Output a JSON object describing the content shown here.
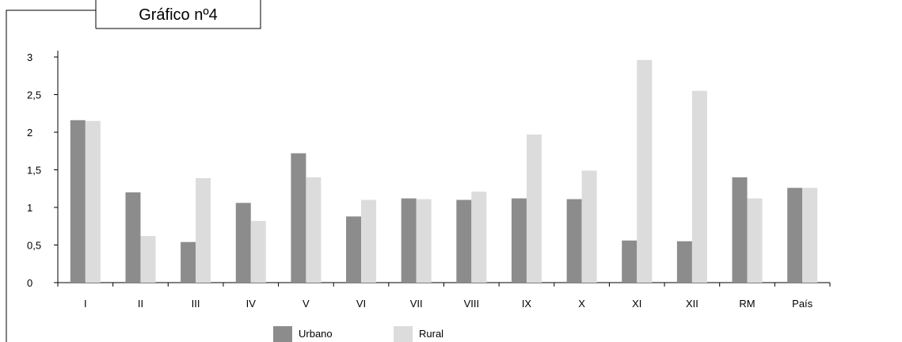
{
  "chart_data": {
    "type": "bar",
    "title": "Gráfico nº4",
    "categories": [
      "I",
      "II",
      "III",
      "IV",
      "V",
      "VI",
      "VII",
      "VIII",
      "IX",
      "X",
      "XI",
      "XII",
      "RM",
      "País"
    ],
    "series": [
      {
        "name": "Urbano",
        "color": "#8c8c8c",
        "values": [
          2.16,
          1.2,
          0.54,
          1.06,
          1.72,
          0.88,
          1.12,
          1.1,
          1.12,
          1.11,
          0.56,
          0.55,
          1.4,
          1.26
        ]
      },
      {
        "name": "Rural",
        "color": "#dcdcdc",
        "values": [
          2.15,
          0.62,
          1.39,
          0.82,
          1.4,
          1.1,
          1.11,
          1.21,
          1.97,
          1.49,
          2.96,
          2.55,
          1.12,
          1.26
        ]
      }
    ],
    "y_ticks": [
      "0",
      "0,5",
      "1",
      "1,5",
      "2",
      "2,5",
      "3"
    ],
    "ylim": [
      0,
      3
    ],
    "grid": false,
    "legend_position": "bottom"
  }
}
